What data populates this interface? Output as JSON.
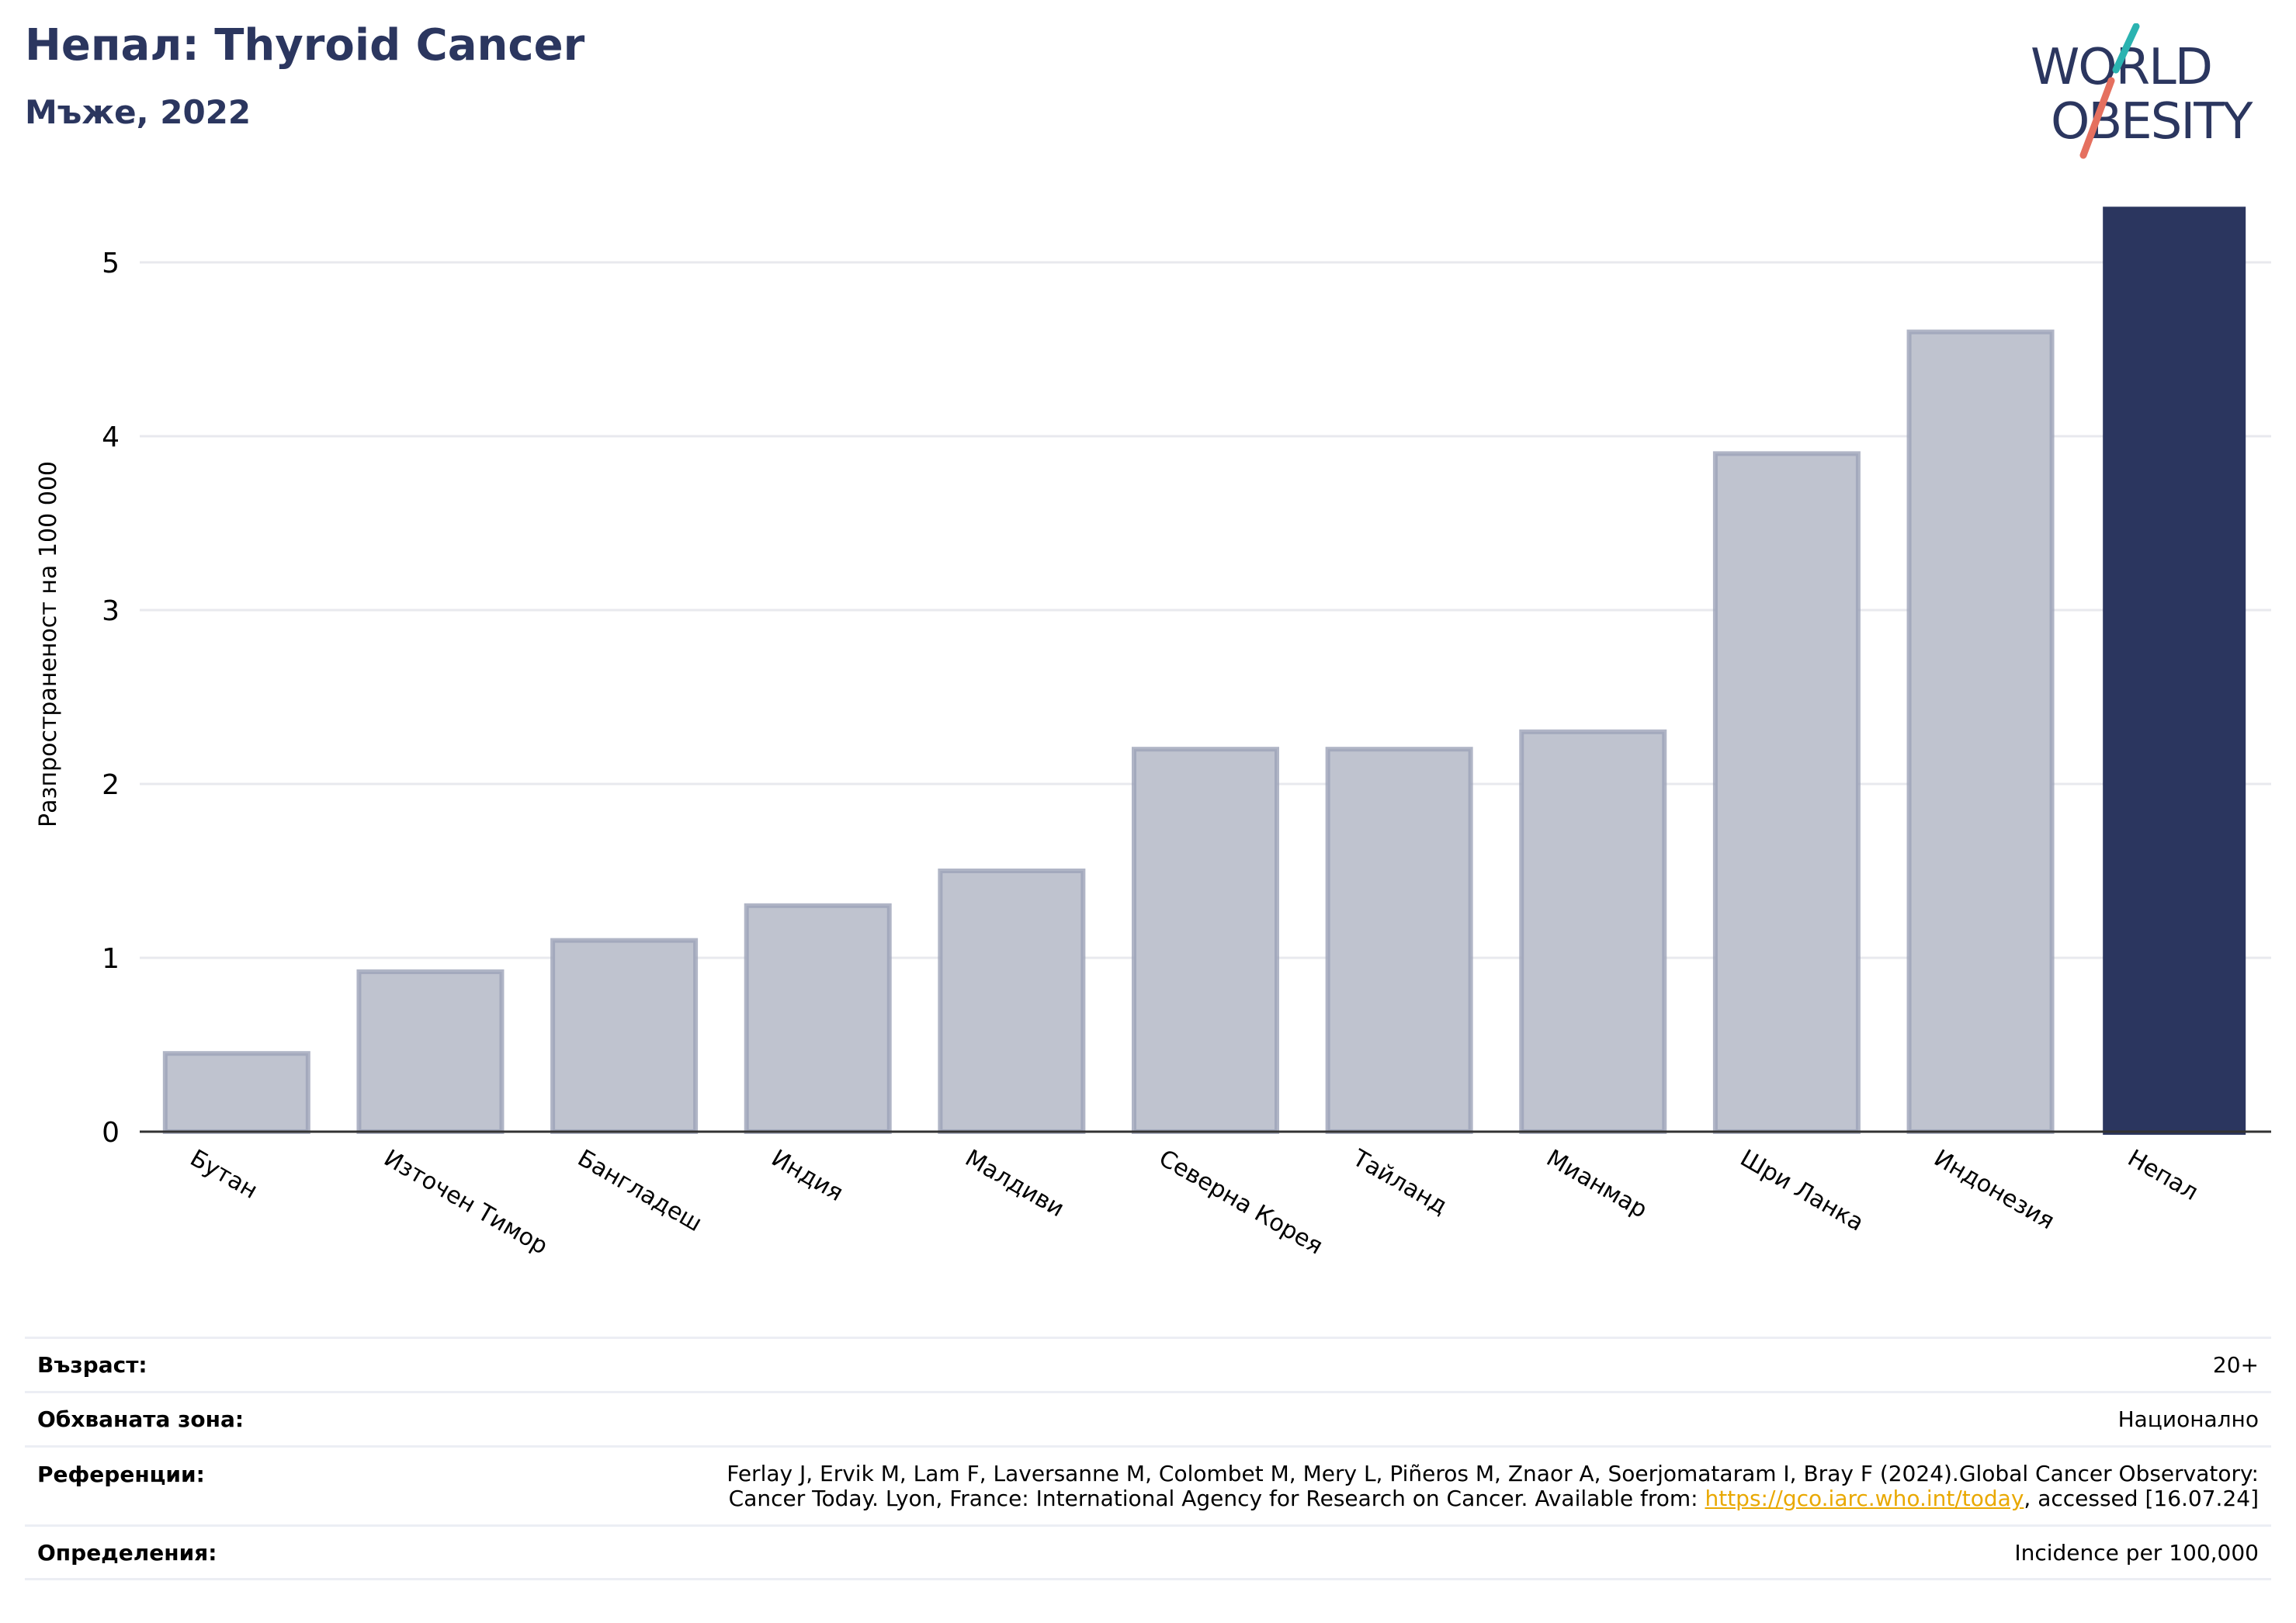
{
  "header": {
    "title": "Непал: Thyroid Cancer",
    "subtitle": "Мъже, 2022"
  },
  "logo": {
    "line1": "WORLD",
    "line2": "OBESITY"
  },
  "colors": {
    "title": "#2b365f",
    "bar_default": "#bfc3cf",
    "bar_default_outline": "#9ca2b8",
    "bar_highlight": "#2b365f",
    "gridline": "#e8e9ee",
    "logo_teal": "#2bb3b1",
    "logo_coral": "#e5705f",
    "link": "#e9a800"
  },
  "chart_data": {
    "type": "bar",
    "ylabel": "Разпространеност  на 100 000",
    "ylim": [
      0,
      5.4
    ],
    "yticks": [
      0,
      1,
      2,
      3,
      4,
      5
    ],
    "grid": true,
    "categories": [
      "Бутан",
      "Източен Тимор",
      "Бангладеш",
      "Индия",
      "Малдиви",
      "Северна Корея",
      "Тайланд",
      "Мианмар",
      "Шри Ланка",
      "Индонезия",
      "Непал"
    ],
    "values": [
      0.45,
      0.92,
      1.1,
      1.3,
      1.5,
      2.2,
      2.2,
      2.3,
      3.9,
      4.6,
      5.32
    ],
    "highlight": "Непал"
  },
  "info": {
    "age_label": "Възраст:",
    "age_value": "20+",
    "area_label": "Обхваната зона:",
    "area_value": "Национално",
    "refs_label": "Референции:",
    "refs_line1": "Ferlay J, Ervik M, Lam F, Laversanne M, Colombet M, Mery L, Piñeros M, Znaor A, Soerjomataram I, Bray F (2024).Global Cancer Observatory:",
    "refs_line2_pre": "Cancer Today. Lyon, France: International Agency for Research on Cancer. Available from: ",
    "refs_link": "https://gco.iarc.who.int/today",
    "refs_line2_post": ", accessed [16.07.24]",
    "defs_label": "Определения:",
    "defs_value": "Incidence per 100,000"
  }
}
